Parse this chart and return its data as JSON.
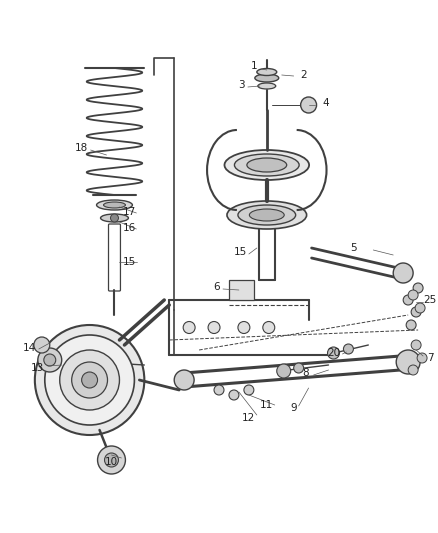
{
  "bg_color": "#ffffff",
  "line_color": "#404040",
  "label_color": "#222222",
  "figsize": [
    4.38,
    5.33
  ],
  "dpi": 100,
  "xlim": [
    0,
    438
  ],
  "ylim": [
    0,
    533
  ]
}
